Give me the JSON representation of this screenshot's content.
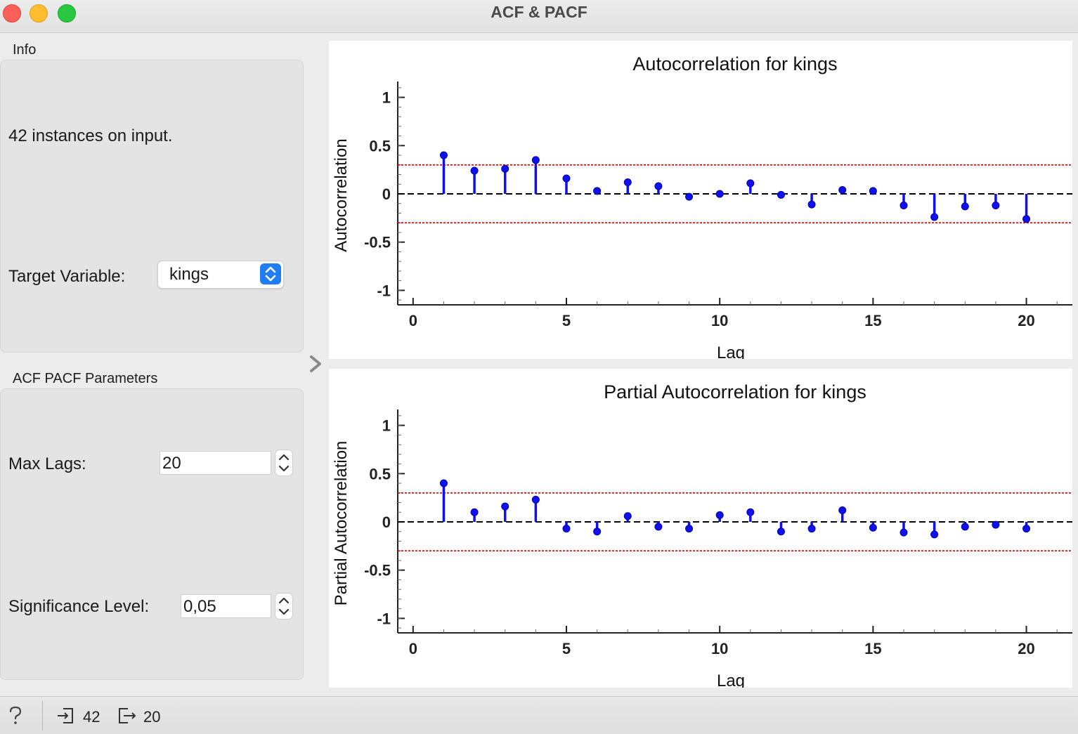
{
  "window": {
    "title": "ACF & PACF"
  },
  "info": {
    "group_label": "Info",
    "instances_text": "42 instances on input.",
    "target_label": "Target Variable:",
    "target_value": "kings"
  },
  "params": {
    "group_label": "ACF  PACF Parameters",
    "max_lags_label": "Max Lags:",
    "max_lags_value": "20",
    "significance_label": "Significance Level:",
    "significance_value": "0,05"
  },
  "status": {
    "input_count": "42",
    "output_count": "20"
  },
  "colors": {
    "stem": "#1010ee",
    "confidence": "#dd0000",
    "zero_line": "#000000"
  },
  "chart_data": [
    {
      "type": "stem",
      "title": "Autocorrelation for kings",
      "xlabel": "Lag",
      "ylabel": "Autocorrelation",
      "xlim": [
        -0.5,
        21.5
      ],
      "ylim": [
        -1.15,
        1.15
      ],
      "xticks": [
        "0",
        "5",
        "10",
        "15",
        "20"
      ],
      "yticks": [
        "1",
        "0.5",
        "0",
        "-0.5",
        "-1"
      ],
      "confidence": 0.3,
      "x": [
        1,
        2,
        3,
        4,
        5,
        6,
        7,
        8,
        9,
        10,
        11,
        12,
        13,
        14,
        15,
        16,
        17,
        18,
        19,
        20
      ],
      "values": [
        0.4,
        0.24,
        0.26,
        0.35,
        0.16,
        0.03,
        0.12,
        0.08,
        -0.03,
        0.0,
        0.11,
        -0.01,
        -0.11,
        0.04,
        0.03,
        -0.12,
        -0.24,
        -0.13,
        -0.12,
        -0.26
      ]
    },
    {
      "type": "stem",
      "title": "Partial Autocorrelation for kings",
      "xlabel": "Lag",
      "ylabel": "Partial Autocorrelation",
      "xlim": [
        -0.5,
        21.5
      ],
      "ylim": [
        -1.15,
        1.15
      ],
      "xticks": [
        "0",
        "5",
        "10",
        "15",
        "20"
      ],
      "yticks": [
        "1",
        "0.5",
        "0",
        "-0.5",
        "-1"
      ],
      "confidence": 0.3,
      "x": [
        1,
        2,
        3,
        4,
        5,
        6,
        7,
        8,
        9,
        10,
        11,
        12,
        13,
        14,
        15,
        16,
        17,
        18,
        19,
        20
      ],
      "values": [
        0.4,
        0.1,
        0.16,
        0.23,
        -0.07,
        -0.1,
        0.06,
        -0.05,
        -0.07,
        0.07,
        0.1,
        -0.1,
        -0.07,
        0.12,
        -0.06,
        -0.11,
        -0.13,
        -0.05,
        -0.03,
        -0.07
      ]
    }
  ]
}
